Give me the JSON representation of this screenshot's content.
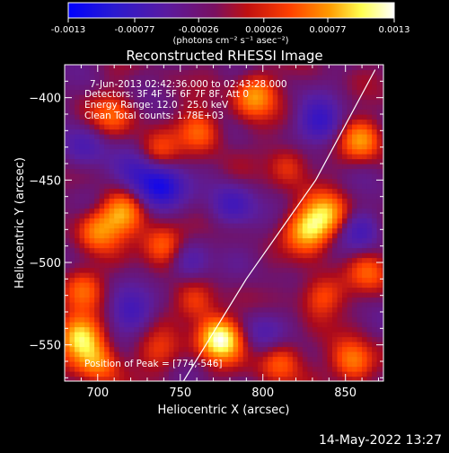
{
  "chart_data": {
    "type": "heatmap",
    "title": "Reconstructed RHESSI Image",
    "xlabel": "Heliocentric X (arcsec)",
    "ylabel": "Heliocentric Y (arcsec)",
    "xlim": [
      680,
      873
    ],
    "ylim": [
      -572,
      -380
    ],
    "x_ticks": [
      700,
      750,
      800,
      850
    ],
    "y_ticks": [
      -400,
      -450,
      -500,
      -550
    ],
    "colorbar": {
      "ticks": [
        "-0.0013",
        "-0.00077",
        "-0.00026",
        "0.00026",
        "0.00077",
        "0.0013"
      ],
      "range": [
        -0.0013,
        0.0013
      ],
      "units": "(photons cm⁻² s⁻¹ asec⁻²)",
      "colors": [
        "#0000ff",
        "#3a1aa8",
        "#6a1a8a",
        "#b0102a",
        "#ff3a00",
        "#ff9a00",
        "#ffff60",
        "#ffffff"
      ]
    },
    "annotations": {
      "time": "7-Jun-2013 02:42:36.000 to 02:43:28.000",
      "detectors": "Detectors: 3F 4F 5F 6F 7F 8F, Att 0",
      "energy": "Energy Range: 12.0 - 25.0 keV",
      "clean": "Clean     Total counts: 1.78E+03",
      "peak": "Position of Peak = [774,-546]"
    },
    "peak": {
      "x": 774,
      "y": -546
    },
    "limb": [
      [
        752,
        -572
      ],
      [
        790,
        -510
      ],
      [
        832,
        -450
      ],
      [
        868,
        -383
      ]
    ],
    "hotspots": [
      {
        "x": 774,
        "y": -546,
        "v": 1.0
      },
      {
        "x": 690,
        "y": -545,
        "v": 0.8
      },
      {
        "x": 795,
        "y": -398,
        "v": 0.6
      },
      {
        "x": 828,
        "y": -480,
        "v": 0.75
      },
      {
        "x": 840,
        "y": -470,
        "v": 0.6
      },
      {
        "x": 715,
        "y": -470,
        "v": 0.6
      },
      {
        "x": 700,
        "y": -480,
        "v": 0.5
      },
      {
        "x": 740,
        "y": -488,
        "v": 0.55
      },
      {
        "x": 762,
        "y": -420,
        "v": 0.5
      },
      {
        "x": 860,
        "y": -425,
        "v": 0.55
      },
      {
        "x": 855,
        "y": -560,
        "v": 0.6
      },
      {
        "x": 810,
        "y": -560,
        "v": 0.45
      },
      {
        "x": 835,
        "y": -520,
        "v": 0.45
      },
      {
        "x": 710,
        "y": -410,
        "v": 0.4
      },
      {
        "x": 735,
        "y": -435,
        "v": 0.35
      },
      {
        "x": 690,
        "y": -515,
        "v": 0.4
      },
      {
        "x": 760,
        "y": -525,
        "v": 0.35
      },
      {
        "x": 815,
        "y": -440,
        "v": 0.35
      },
      {
        "x": 865,
        "y": -505,
        "v": 0.35
      },
      {
        "x": 700,
        "y": -560,
        "v": 0.55
      },
      {
        "x": 738,
        "y": -555,
        "v": 0.3
      }
    ],
    "coldspots": [
      {
        "x": 738,
        "y": -455,
        "v": -0.8
      },
      {
        "x": 725,
        "y": -445,
        "v": -0.5
      },
      {
        "x": 835,
        "y": -415,
        "v": -0.55
      },
      {
        "x": 780,
        "y": -465,
        "v": -0.45
      },
      {
        "x": 860,
        "y": -480,
        "v": -0.4
      },
      {
        "x": 755,
        "y": -500,
        "v": -0.35
      },
      {
        "x": 720,
        "y": -530,
        "v": -0.4
      },
      {
        "x": 800,
        "y": -540,
        "v": -0.3
      },
      {
        "x": 690,
        "y": -430,
        "v": -0.35
      }
    ]
  },
  "footer": {
    "timestamp": "14-May-2022 13:27"
  }
}
